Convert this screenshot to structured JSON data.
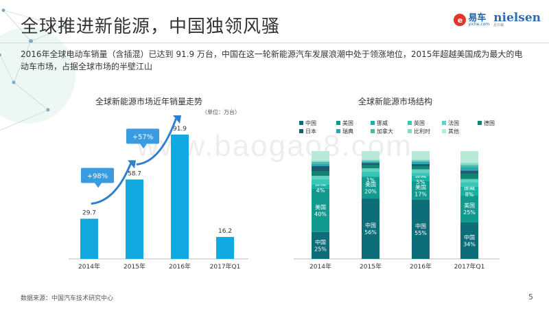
{
  "header": {
    "title": "全球推进新能源，中国独领风骚",
    "logo_yiche_main": "易车",
    "logo_yiche_sub": "yiche.com",
    "logo_nielsen_main": "nielsen",
    "logo_nielsen_sub": "尼尔森"
  },
  "subtitle": "2016年全球电动车销量（含插混）已达到 91.9 万台，中国在这一轮新能源汽车发展浪潮中处于领涨地位，2015年超越美国成为最大的电动车市场，占据全球市场的半壁江山",
  "watermark": "www.baogao8.com",
  "footer": {
    "source": "数据来源：中国汽车技术研究中心",
    "page": "5"
  },
  "colors": {
    "bar_blue": "#12a8e0",
    "arrow_blue": "#2f7fcf",
    "badge_blue": "#3a9be0"
  },
  "chart_data": [
    {
      "type": "bar",
      "title": "全球新能源市场近年销量走势",
      "unit": "（单位：万台）",
      "categories": [
        "2014年",
        "2015年",
        "2016年",
        "2017年Q1"
      ],
      "values": [
        29.7,
        58.7,
        91.9,
        16.2
      ],
      "value_labels": [
        "29.7",
        "58.7",
        "91.9",
        "16.2"
      ],
      "ylim": [
        0,
        100
      ],
      "annotations": [
        {
          "text": "+98%",
          "from": "2014年",
          "to": "2015年"
        },
        {
          "text": "+57%",
          "from": "2015年",
          "to": "2016年"
        }
      ]
    },
    {
      "type": "stacked-bar-100",
      "title": "全球新能源市场结构",
      "categories": [
        "2014年",
        "2015年",
        "2016年",
        "2017年Q1"
      ],
      "legend": [
        {
          "name": "中国",
          "color": "#0d6e7a"
        },
        {
          "name": "美国",
          "color": "#139a8f"
        },
        {
          "name": "挪威",
          "color": "#17b3a5"
        },
        {
          "name": "英国",
          "color": "#38c6b6"
        },
        {
          "name": "法国",
          "color": "#5fd2c2"
        },
        {
          "name": "德国",
          "color": "#0f8572"
        },
        {
          "name": "日本",
          "color": "#1a5d70"
        },
        {
          "name": "瑞典",
          "color": "#2aa7b2"
        },
        {
          "name": "加拿大",
          "color": "#4cb9a6"
        },
        {
          "name": "比利时",
          "color": "#7fdccb"
        },
        {
          "name": "其他",
          "color": "#b9ead9"
        }
      ],
      "series": [
        {
          "name": "中国",
          "values": [
            25,
            56,
            55,
            34
          ]
        },
        {
          "name": "美国",
          "values": [
            40,
            20,
            17,
            25
          ]
        },
        {
          "name": "挪威",
          "values": [
            4,
            1,
            5,
            8
          ]
        },
        {
          "name": "英国",
          "values": [
            5,
            4,
            3,
            4
          ]
        },
        {
          "name": "法国",
          "values": [
            3,
            3,
            3,
            3
          ]
        },
        {
          "name": "德国",
          "values": [
            4,
            3,
            3,
            5
          ]
        },
        {
          "name": "日本",
          "values": [
            5,
            2,
            2,
            3
          ]
        },
        {
          "name": "瑞典",
          "values": [
            2,
            1,
            2,
            3
          ]
        },
        {
          "name": "加拿大",
          "values": [
            2,
            1,
            1,
            2
          ]
        },
        {
          "name": "比利时",
          "values": [
            1,
            1,
            1,
            2
          ]
        },
        {
          "name": "其他",
          "values": [
            9,
            8,
            8,
            11
          ]
        }
      ],
      "segment_labels": [
        [
          "中国 25%",
          "美国 40%",
          "挪威 4%"
        ],
        [
          "中国 56%",
          "美国 20%",
          "挪威 1%"
        ],
        [
          "中国 55%",
          "美国 17%",
          "挪威 5%"
        ],
        [
          "中国 34%",
          "美国 25%",
          "挪威 8%"
        ]
      ]
    }
  ]
}
